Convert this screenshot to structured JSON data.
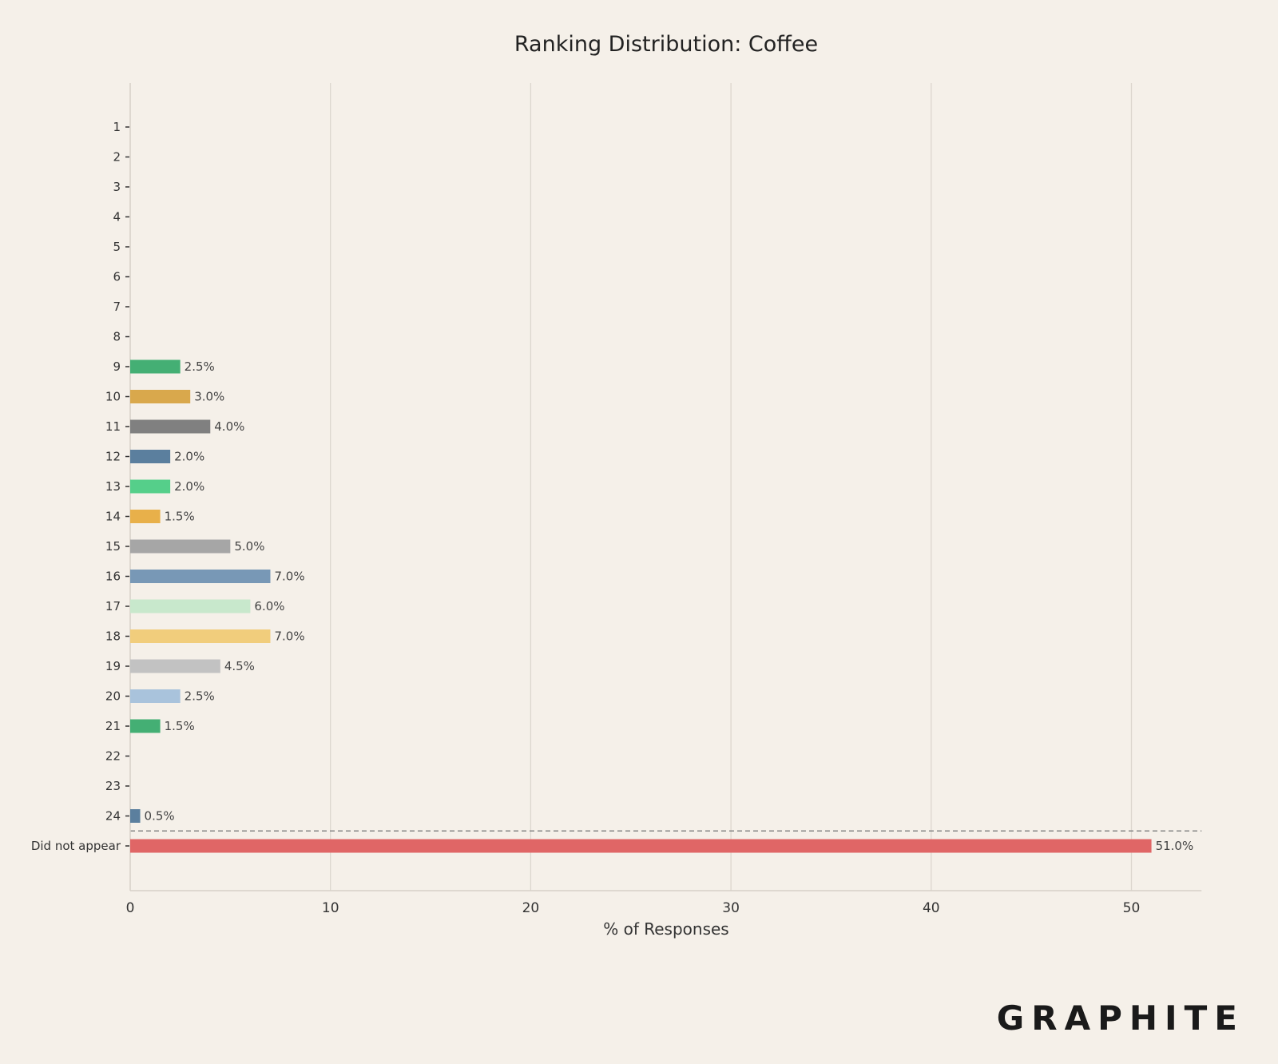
{
  "chart_data": {
    "type": "bar",
    "orientation": "horizontal",
    "title": "Ranking Distribution: Coffee",
    "xlabel": "% of Responses",
    "ylabel": "",
    "xlim": [
      0,
      53.5
    ],
    "x_ticks": [
      0,
      10,
      20,
      30,
      40,
      50
    ],
    "grid": true,
    "categories": [
      "1",
      "2",
      "3",
      "4",
      "5",
      "6",
      "7",
      "8",
      "9",
      "10",
      "11",
      "12",
      "13",
      "14",
      "15",
      "16",
      "17",
      "18",
      "19",
      "20",
      "21",
      "22",
      "23",
      "24",
      "Did not appear"
    ],
    "values": [
      0,
      0,
      0,
      0,
      0,
      0,
      0,
      0,
      2.5,
      3.0,
      4.0,
      2.0,
      2.0,
      1.5,
      5.0,
      7.0,
      6.0,
      7.0,
      4.5,
      2.5,
      1.5,
      0,
      0,
      0.5,
      51.0
    ],
    "data_labels": [
      "",
      "",
      "",
      "",
      "",
      "",
      "",
      "",
      "2.5%",
      "3.0%",
      "4.0%",
      "2.0%",
      "2.0%",
      "1.5%",
      "5.0%",
      "7.0%",
      "6.0%",
      "7.0%",
      "4.5%",
      "2.5%",
      "1.5%",
      "",
      "",
      "0.5%",
      "51.0%"
    ],
    "colors": [
      "#44af74",
      "#d9a84c",
      "#808080",
      "#5b7f9e",
      "#55cf8a",
      "#e8b04a",
      "#a6a6a6",
      "#7898b6",
      "#c8e8cc",
      "#f1cd7c",
      "#c2c2c2",
      "#a9c3dc",
      "#44af74",
      "#5b7f9e",
      "#e06666"
    ],
    "separator": "dashed line above 'Did not appear'"
  },
  "branding": {
    "logo_text": "GRAPHITE"
  }
}
